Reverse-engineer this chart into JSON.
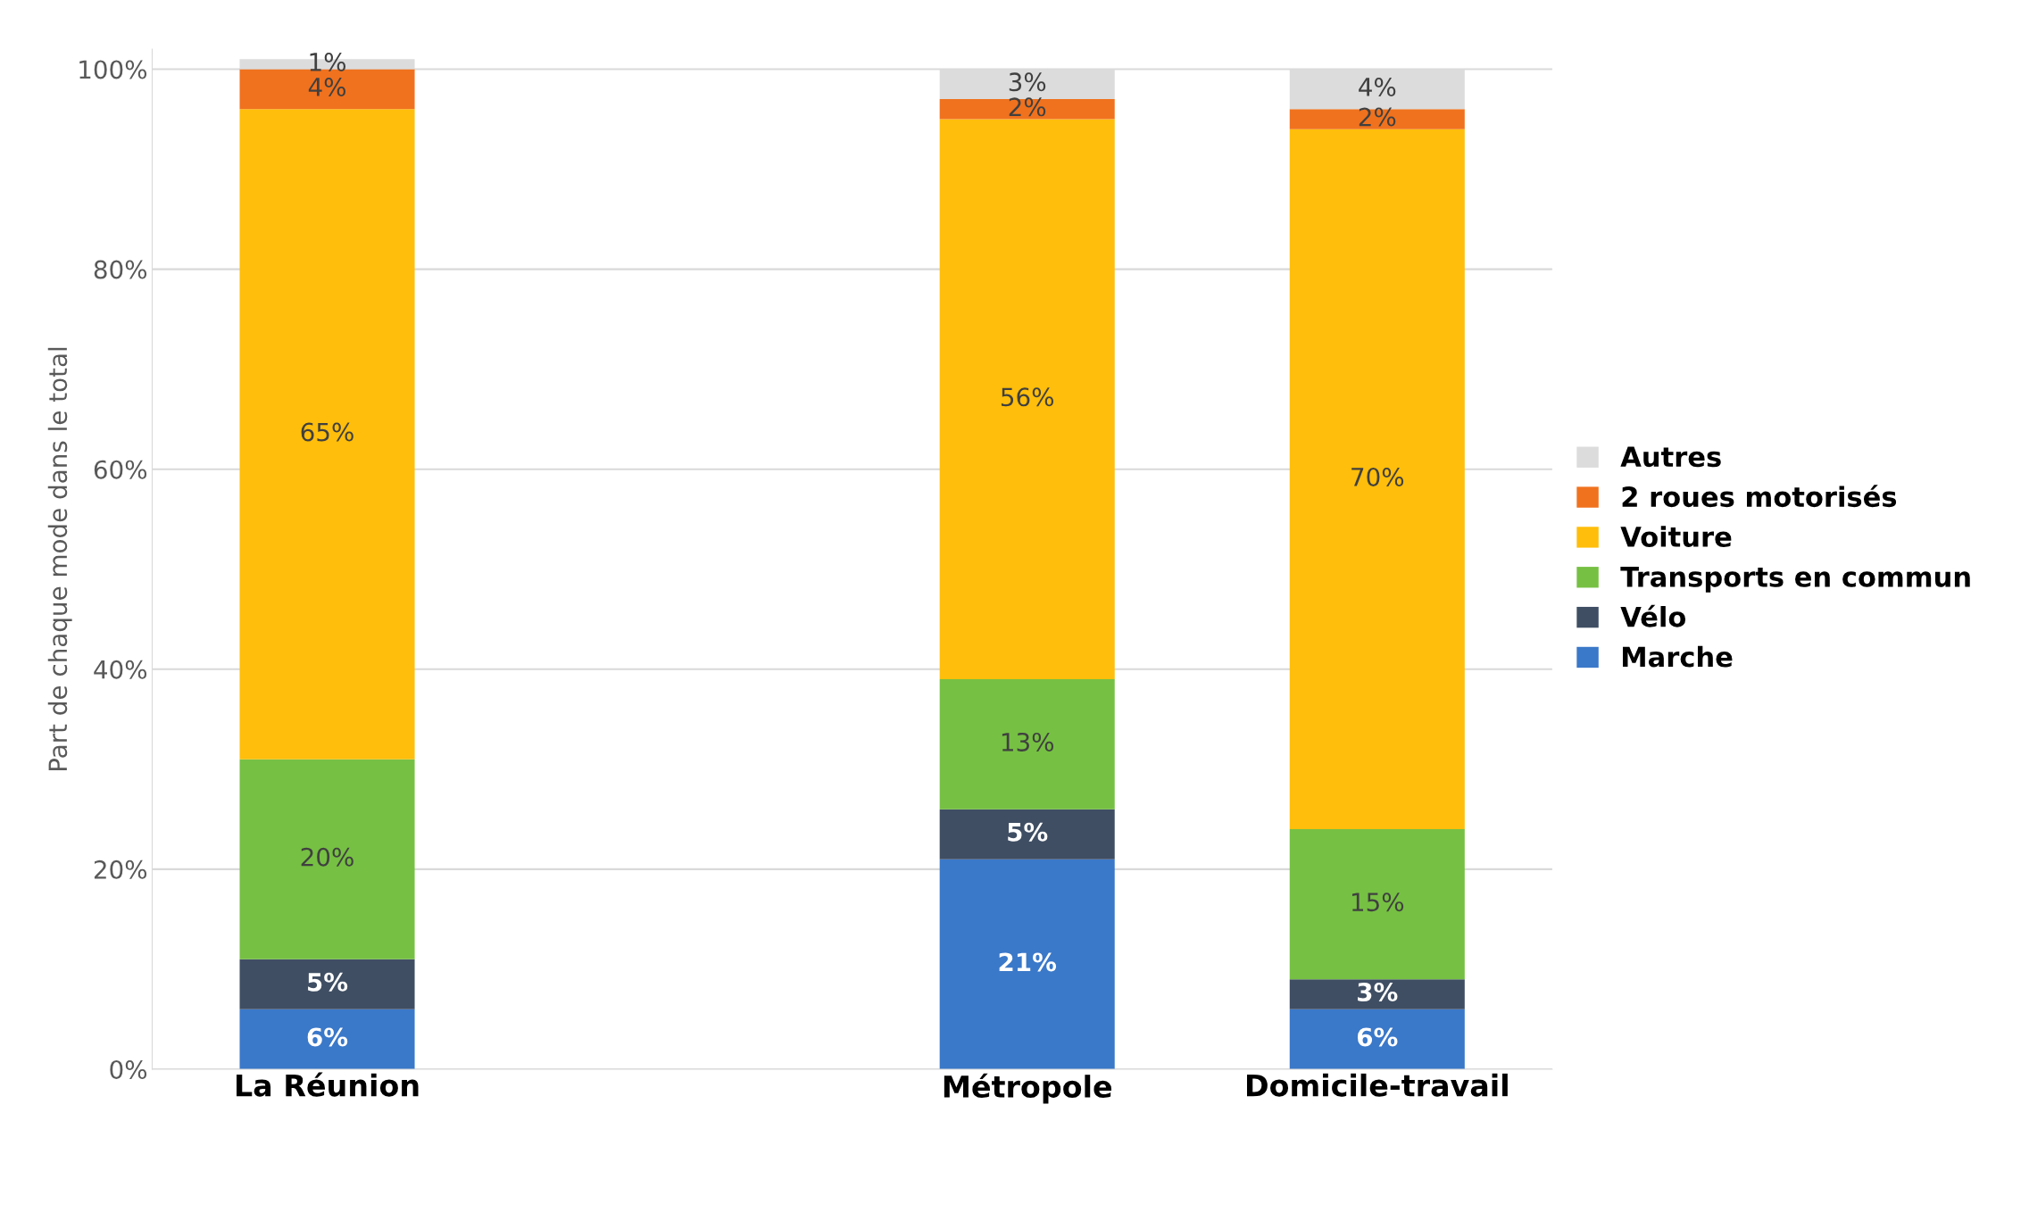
{
  "chart_data": {
    "type": "bar",
    "stacked": true,
    "ylabel": "Part de chaque mode dans le total",
    "categories": [
      "La Réunion",
      null,
      "Métropole",
      "Domicile-travail"
    ],
    "series": [
      {
        "name": "Marche",
        "color": "#3a78c9",
        "values": [
          6,
          null,
          21,
          6
        ],
        "value_labels": [
          "6%",
          null,
          "21%",
          "6%"
        ]
      },
      {
        "name": "Vélo",
        "color": "#3f4e63",
        "values": [
          5,
          null,
          5,
          3
        ],
        "value_labels": [
          "5%",
          null,
          "5%",
          "3%"
        ]
      },
      {
        "name": "Transports en commun",
        "color": "#76c043",
        "values": [
          20,
          null,
          13,
          15
        ],
        "value_labels": [
          "20%",
          null,
          "13%",
          "15%"
        ]
      },
      {
        "name": "Voiture",
        "color": "#ffbe0b",
        "values": [
          65,
          null,
          56,
          70
        ],
        "value_labels": [
          "65%",
          null,
          "56%",
          "70%"
        ]
      },
      {
        "name": "2 roues motorisés",
        "color": "#f0721e",
        "values": [
          4,
          null,
          2,
          2
        ],
        "value_labels": [
          "4%",
          null,
          "2%",
          "2%"
        ]
      },
      {
        "name": "Autres",
        "color": "#dcdcdc",
        "values": [
          1,
          null,
          3,
          4
        ],
        "value_labels": [
          "1%",
          null,
          "3%",
          "4%"
        ]
      }
    ],
    "ylim": [
      0,
      102
    ],
    "yticks": [
      {
        "value": 0,
        "label": "0%"
      },
      {
        "value": 20,
        "label": "20%"
      },
      {
        "value": 40,
        "label": "40%"
      },
      {
        "value": 60,
        "label": "60%"
      },
      {
        "value": 80,
        "label": "80%"
      },
      {
        "value": 100,
        "label": "100%"
      }
    ],
    "grid": "y",
    "legend": "right"
  }
}
